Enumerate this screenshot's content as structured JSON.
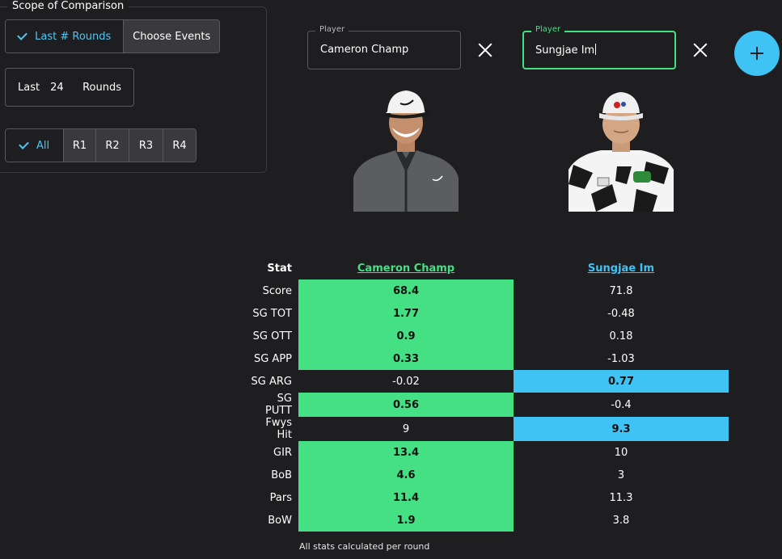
{
  "scope": {
    "title": "Scope of Comparison",
    "mode_options": [
      {
        "label": "Last # Rounds",
        "selected": true
      },
      {
        "label": "Choose Events",
        "selected": false
      }
    ],
    "last_prefix": "Last",
    "last_value": "24",
    "last_suffix": "Rounds",
    "round_options": [
      {
        "label": "All",
        "selected": true
      },
      {
        "label": "R1",
        "selected": false
      },
      {
        "label": "R2",
        "selected": false
      },
      {
        "label": "R3",
        "selected": false
      },
      {
        "label": "R4",
        "selected": false
      }
    ]
  },
  "players": [
    {
      "field_label": "Player",
      "name": "Cameron Champ"
    },
    {
      "field_label": "Player",
      "name": "Sungjae Im"
    }
  ],
  "table": {
    "stat_header": "Stat",
    "rows": [
      {
        "stat": "Score",
        "p1": "68.4",
        "p2": "71.8",
        "winner": 1
      },
      {
        "stat": "SG TOT",
        "p1": "1.77",
        "p2": "-0.48",
        "winner": 1
      },
      {
        "stat": "SG OTT",
        "p1": "0.9",
        "p2": "0.18",
        "winner": 1
      },
      {
        "stat": "SG APP",
        "p1": "0.33",
        "p2": "-1.03",
        "winner": 1
      },
      {
        "stat": "SG ARG",
        "p1": "-0.02",
        "p2": "0.77",
        "winner": 2
      },
      {
        "stat": "SG PUTT",
        "p1": "0.56",
        "p2": "-0.4",
        "winner": 1
      },
      {
        "stat": "Fwys Hit",
        "p1": "9",
        "p2": "9.3",
        "winner": 2
      },
      {
        "stat": "GIR",
        "p1": "13.4",
        "p2": "10",
        "winner": 1
      },
      {
        "stat": "BoB",
        "p1": "4.6",
        "p2": "3",
        "winner": 1
      },
      {
        "stat": "Pars",
        "p1": "11.4",
        "p2": "11.3",
        "winner": 1
      },
      {
        "stat": "BoW",
        "p1": "1.9",
        "p2": "3.8",
        "winner": 1
      }
    ]
  },
  "footnote": "All stats calculated per round",
  "colors": {
    "player1": "#45e083",
    "player2": "#3fc3f5",
    "background": "#1e1e20"
  },
  "icons": {
    "check": "check-icon",
    "close": "close-icon",
    "add": "plus-icon"
  }
}
